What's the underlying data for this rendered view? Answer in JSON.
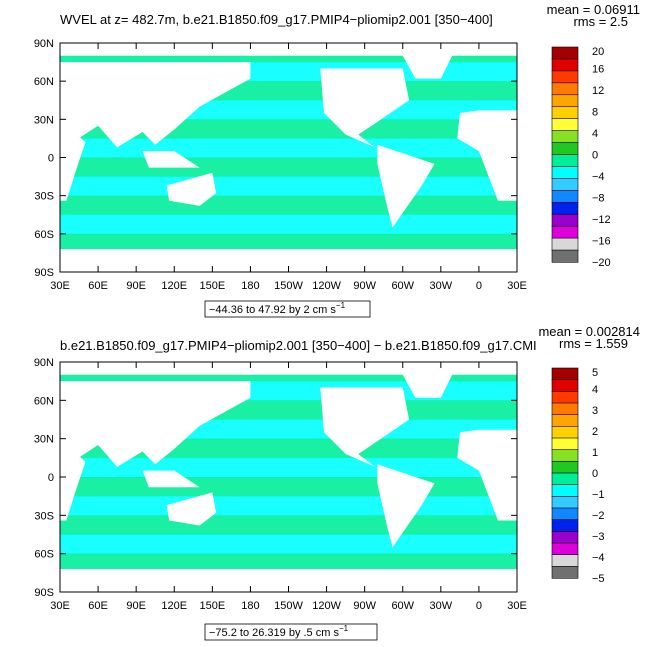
{
  "chart_data": [
    {
      "type": "heatmap",
      "title": "WVEL at z= 482.7m, b.e21.B1850.f09_g17.PMIP4−pliomip2.001 [350−400]",
      "stats": {
        "mean": "mean = 0.06911",
        "rms": "rms = 2.5"
      },
      "range_note": "−44.36 to 47.92 by 2 cm s",
      "unit_exp": "−1",
      "xlim": [
        30,
        390
      ],
      "ylim": [
        -90,
        90
      ],
      "x_ticks": [
        "30E",
        "60E",
        "90E",
        "120E",
        "150E",
        "180",
        "150W",
        "120W",
        "90W",
        "60W",
        "30W",
        "0",
        "30E"
      ],
      "y_ticks": [
        "90S",
        "60S",
        "30S",
        "0",
        "30N",
        "60N",
        "90N"
      ],
      "colorbar": {
        "labels": [
          "20",
          "16",
          "12",
          "8",
          "4",
          "0",
          "−4",
          "−8",
          "−12",
          "−16",
          "−20"
        ],
        "colors": [
          "#a50000",
          "#e00000",
          "#ff3a00",
          "#ff7a00",
          "#ffa500",
          "#ffd000",
          "#ffff33",
          "#88e024",
          "#22c822",
          "#00ee99",
          "#00ffff",
          "#33ccff",
          "#1188ff",
          "#0022ee",
          "#9900cc",
          "#dd00dd",
          "#d8d8d8",
          "#707070"
        ]
      }
    },
    {
      "type": "heatmap",
      "title": "b.e21.B1850.f09_g17.PMIP4−pliomip2.001 [350−400] − b.e21.B1850.f09_g17.CMI",
      "stats": {
        "mean": "mean = 0.002814",
        "rms": "rms = 1.559"
      },
      "range_note": "−75.2 to 26.319 by .5 cm s",
      "unit_exp": "−1",
      "xlim": [
        30,
        390
      ],
      "ylim": [
        -90,
        90
      ],
      "x_ticks": [
        "30E",
        "60E",
        "90E",
        "120E",
        "150E",
        "180",
        "150W",
        "120W",
        "90W",
        "60W",
        "30W",
        "0",
        "30E"
      ],
      "y_ticks": [
        "90S",
        "60S",
        "30S",
        "0",
        "30N",
        "60N",
        "90N"
      ],
      "colorbar": {
        "labels": [
          "5",
          "4",
          "3",
          "2",
          "1",
          "0",
          "−1",
          "−2",
          "−3",
          "−4",
          "−5"
        ],
        "colors": [
          "#a50000",
          "#e00000",
          "#ff3a00",
          "#ff7a00",
          "#ffa500",
          "#ffd000",
          "#ffff33",
          "#88e024",
          "#22c822",
          "#00ee99",
          "#00ffff",
          "#33ccff",
          "#1188ff",
          "#0022ee",
          "#9900cc",
          "#dd00dd",
          "#d8d8d8",
          "#707070"
        ]
      }
    }
  ]
}
